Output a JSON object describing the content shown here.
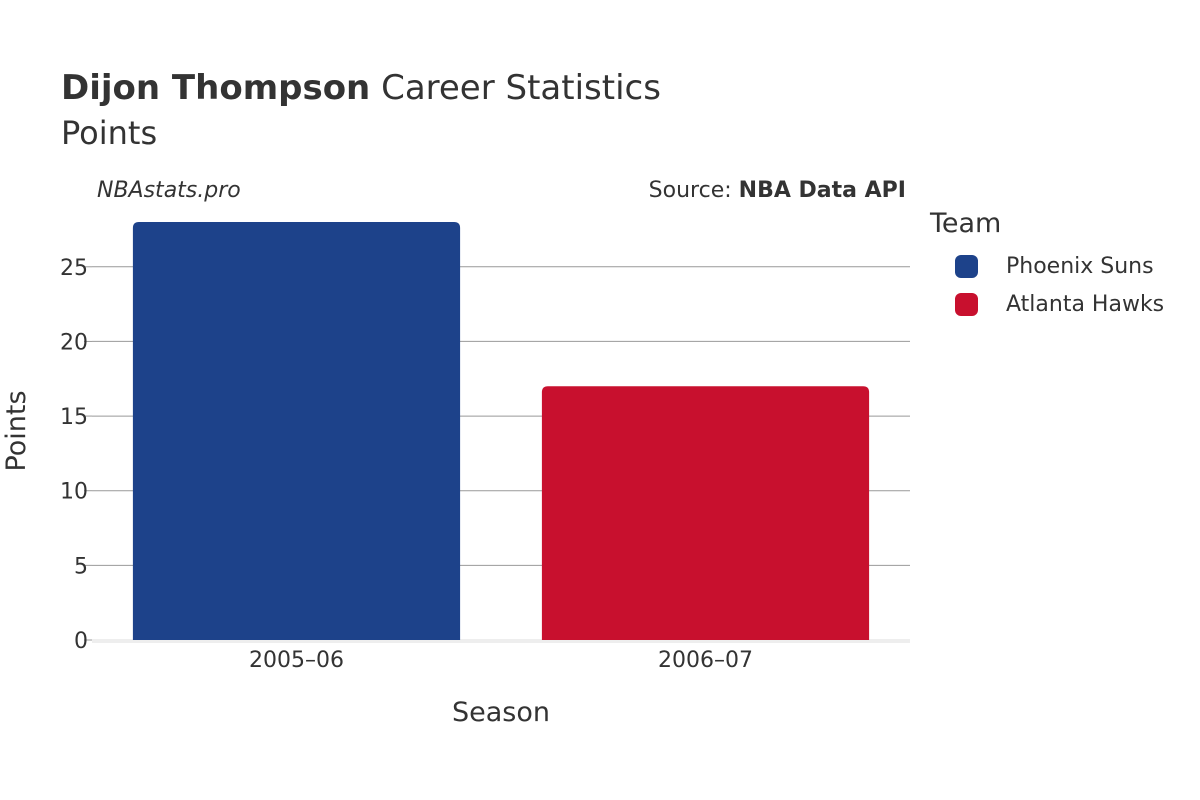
{
  "header": {
    "title_bold": "Dijon Thompson",
    "title_rest": "Career Statistics",
    "subtitle": "Points",
    "brand": "NBAstats.pro",
    "source_prefix": "Source:",
    "source_name": "NBA Data API"
  },
  "legend": {
    "title": "Team",
    "items": [
      {
        "label": "Phoenix Suns",
        "color": "#1d428a"
      },
      {
        "label": "Atlanta Hawks",
        "color": "#c8102e"
      }
    ]
  },
  "chart_data": {
    "type": "bar",
    "title": "Points",
    "xlabel": "Season",
    "ylabel": "Points",
    "categories": [
      "2005–06",
      "2006–07"
    ],
    "series": [
      {
        "name": "Phoenix Suns",
        "color": "#1d428a",
        "values": [
          28,
          null
        ]
      },
      {
        "name": "Atlanta Hawks",
        "color": "#c8102e",
        "values": [
          null,
          17
        ]
      }
    ],
    "ylim": [
      0,
      28
    ],
    "yticks": [
      0,
      5,
      10,
      15,
      20,
      25
    ],
    "grid": true,
    "legend_position": "right"
  }
}
